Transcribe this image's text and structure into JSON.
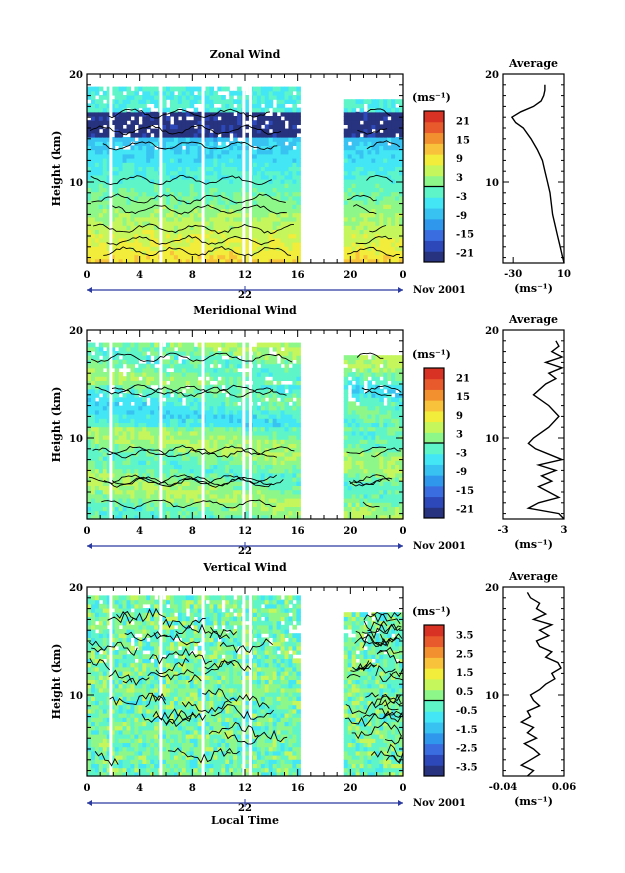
{
  "colors": {
    "palette": [
      "#27337e",
      "#2d48b8",
      "#3a6de0",
      "#2f98ec",
      "#38c2f2",
      "#43e6f4",
      "#5ef5c9",
      "#8ef78a",
      "#c5f65c",
      "#f2ec3a",
      "#f8c23a",
      "#f2902f",
      "#e85a2c",
      "#d83224"
    ],
    "background": "#ffffff",
    "axis": "#000000"
  },
  "chart_data": [
    {
      "type": "heatmap",
      "title": "Zonal Wind",
      "ylabel": "Height (km)",
      "xlabel": "",
      "x_ticks": [
        "0",
        "4",
        "8",
        "12",
        "16",
        "20",
        "0"
      ],
      "y_ticks": [
        "10",
        "20"
      ],
      "ylim": [
        2.5,
        20
      ],
      "xlim": [
        0,
        24
      ],
      "date_mark": "22",
      "date_label": "Nov 2001",
      "colorbar": {
        "unit": "(ms⁻¹)",
        "labels": [
          "21",
          "15",
          "9",
          "3",
          "-3",
          "-9",
          "-15",
          "-21"
        ],
        "range": [
          -24,
          24
        ]
      },
      "average": {
        "title": "Average",
        "xlabel": "(ms⁻¹)",
        "x_ticks": [
          "-30",
          "10"
        ],
        "xlim": [
          -38,
          10
        ],
        "y_ticks": [
          "10",
          "20"
        ],
        "height_km": [
          2.5,
          3,
          4,
          5,
          6,
          7,
          8,
          9,
          10,
          11,
          12,
          13,
          14,
          15,
          15.5,
          16,
          16.5,
          17,
          17.5,
          18,
          18.5,
          19
        ],
        "values": [
          10,
          9,
          7,
          5,
          3,
          1,
          0,
          -1,
          -3,
          -5,
          -7,
          -11,
          -16,
          -22,
          -28,
          -31,
          -24,
          -14,
          -8,
          -6,
          -5,
          -5
        ]
      }
    },
    {
      "type": "heatmap",
      "title": "Meridional Wind",
      "ylabel": "Height (km)",
      "xlabel": "",
      "x_ticks": [
        "0",
        "4",
        "8",
        "12",
        "16",
        "20",
        "0"
      ],
      "y_ticks": [
        "10",
        "20"
      ],
      "ylim": [
        2.5,
        20
      ],
      "xlim": [
        0,
        24
      ],
      "date_mark": "22",
      "date_label": "Nov 2001",
      "colorbar": {
        "unit": "(ms⁻¹)",
        "labels": [
          "21",
          "15",
          "9",
          "3",
          "-3",
          "-9",
          "-15",
          "-21"
        ],
        "range": [
          -24,
          24
        ]
      },
      "average": {
        "title": "Average",
        "xlabel": "(ms⁻¹)",
        "x_ticks": [
          "-3",
          "3"
        ],
        "xlim": [
          -3,
          3
        ],
        "y_ticks": [
          "10",
          "20"
        ],
        "height_km": [
          2.5,
          3,
          3.5,
          4,
          4.5,
          5,
          5.5,
          6,
          6.5,
          7,
          7.5,
          8,
          8.5,
          9,
          9.5,
          10,
          11,
          12,
          13,
          14,
          15,
          15.5,
          16,
          16.5,
          17,
          17.5,
          18,
          18.5,
          19
        ],
        "values": [
          3,
          2.5,
          -0.5,
          0.5,
          2.5,
          1.5,
          0.5,
          1.8,
          0.8,
          2.2,
          0.5,
          2.8,
          1.5,
          0.2,
          -0.5,
          0,
          1.5,
          2.5,
          1.5,
          0,
          1.2,
          2.2,
          1.5,
          2.8,
          1.2,
          2.8,
          1.8,
          2.5,
          2.2
        ]
      }
    },
    {
      "type": "heatmap",
      "title": "Vertical Wind",
      "ylabel": "Height (km)",
      "xlabel": "Local Time",
      "x_ticks": [
        "0",
        "4",
        "8",
        "12",
        "16",
        "20",
        "0"
      ],
      "y_ticks": [
        "10",
        "20"
      ],
      "ylim": [
        2.5,
        20
      ],
      "xlim": [
        0,
        24
      ],
      "date_mark": "22",
      "date_label": "Nov 2001",
      "colorbar": {
        "unit": "(ms⁻¹)",
        "labels": [
          "3.5",
          "2.5",
          "1.5",
          "0.5",
          "-0.5",
          "-1.5",
          "-2.5",
          "-3.5"
        ],
        "range": [
          -4,
          4
        ]
      },
      "average": {
        "title": "Average",
        "xlabel": "(ms⁻¹)",
        "x_ticks": [
          "-0.04",
          "0.06"
        ],
        "xlim": [
          -0.04,
          0.06
        ],
        "y_ticks": [
          "10",
          "20"
        ],
        "height_km": [
          2.5,
          3,
          3.5,
          4,
          4.5,
          5,
          5.5,
          6,
          6.5,
          7,
          7.5,
          8,
          8.5,
          9,
          9.5,
          10,
          10.5,
          11,
          11.5,
          12,
          12.5,
          13,
          13.5,
          14,
          14.5,
          15,
          15.5,
          16,
          16.5,
          17,
          17.5,
          18,
          18.5,
          19,
          19.5
        ],
        "values": [
          0.0,
          0.01,
          -0.01,
          0.005,
          0.02,
          0.01,
          -0.005,
          0.015,
          0.0,
          0.01,
          -0.01,
          0.005,
          0.0,
          0.02,
          0.01,
          0.005,
          0.02,
          0.03,
          0.045,
          0.04,
          0.055,
          0.05,
          0.03,
          0.04,
          0.02,
          0.015,
          0.035,
          0.02,
          0.04,
          0.01,
          0.03,
          0.015,
          0.02,
          0.005,
          0.0
        ]
      }
    }
  ]
}
